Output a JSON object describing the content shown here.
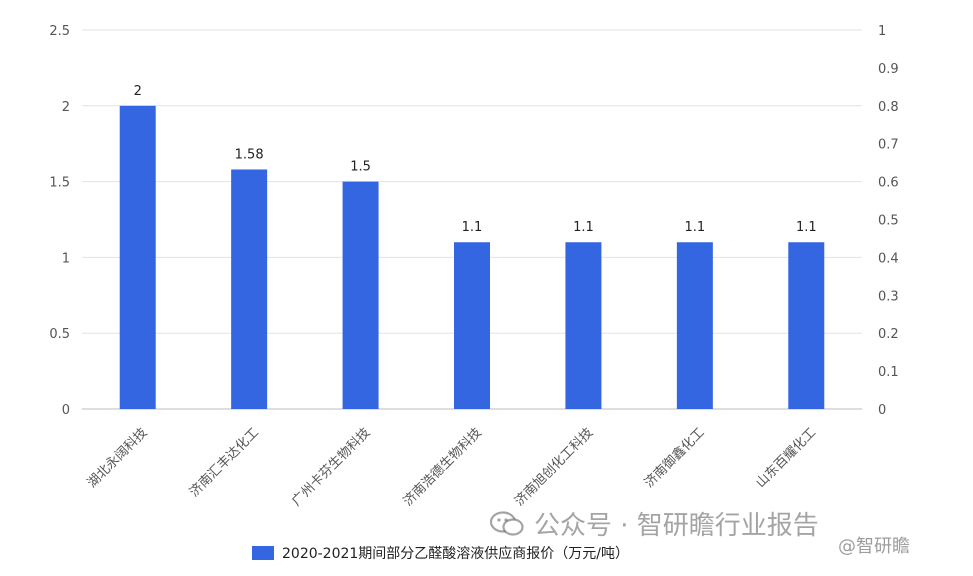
{
  "chart_data": {
    "type": "bar",
    "categories": [
      "湖北永阔科技",
      "济南汇丰达化工",
      "广州卡芬生物科技",
      "济南浩德生物科技",
      "济南旭创化工科技",
      "济南御鑫化工",
      "山东百耀化工"
    ],
    "series": [
      {
        "name": "2020-2021期间部分乙醛酸溶液供应商报价（万元/吨）",
        "values": [
          2,
          1.58,
          1.5,
          1.1,
          1.1,
          1.1,
          1.1
        ],
        "color": "#3366e0"
      }
    ],
    "data_labels": [
      "2",
      "1.58",
      "1.5",
      "1.1",
      "1.1",
      "1.1",
      "1.1"
    ],
    "ylim": [
      0,
      2.5
    ],
    "y_ticks": [
      "0",
      "0.5",
      "1",
      "1.5",
      "2",
      "2.5"
    ],
    "y2lim": [
      0,
      1
    ],
    "y2_ticks": [
      "0",
      "0.1",
      "0.2",
      "0.3",
      "0.4",
      "0.5",
      "0.6",
      "0.7",
      "0.8",
      "0.9",
      "1"
    ],
    "grid": true,
    "legend_position": "bottom"
  },
  "watermark": {
    "text": "公众号 · 智研瞻行业报告",
    "handle": "@智研瞻"
  }
}
